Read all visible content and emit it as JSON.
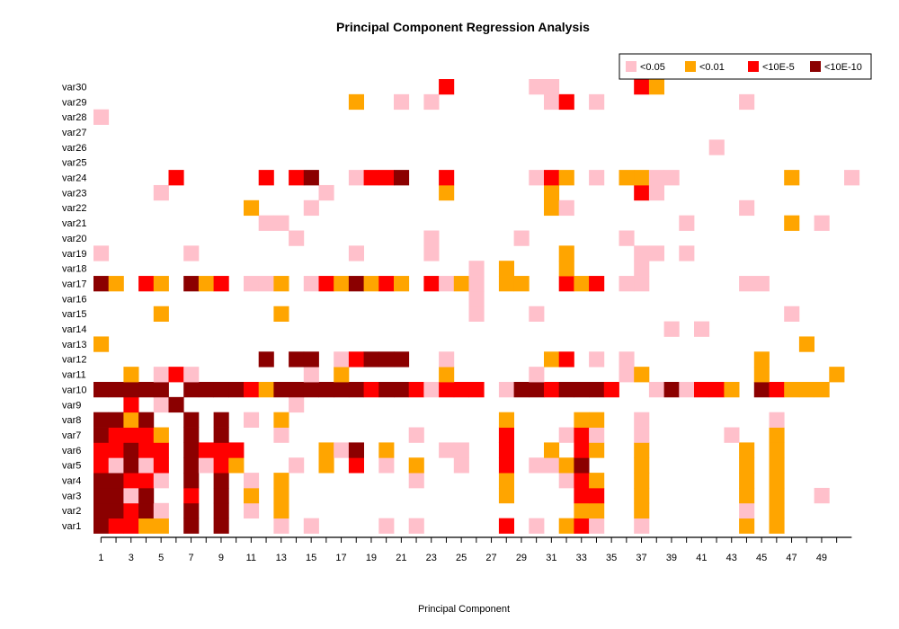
{
  "chart_data": {
    "type": "heatmap",
    "title": "Principal Component Regression Analysis",
    "xlabel": "Principal Component",
    "ylabel": "",
    "x_tick_labels": [
      "1",
      "3",
      "5",
      "7",
      "9",
      "11",
      "13",
      "15",
      "17",
      "19",
      "21",
      "23",
      "25",
      "27",
      "29",
      "31",
      "33",
      "35",
      "37",
      "39",
      "41",
      "43",
      "45",
      "47",
      "49"
    ],
    "x_range": [
      1,
      49
    ],
    "y_categories": [
      "var1",
      "var2",
      "var3",
      "var4",
      "var5",
      "var6",
      "var7",
      "var8",
      "var9",
      "var10",
      "var11",
      "var12",
      "var13",
      "var14",
      "var15",
      "var16",
      "var17",
      "var18",
      "var19",
      "var20",
      "var21",
      "var22",
      "var23",
      "var24",
      "var25",
      "var26",
      "var27",
      "var28",
      "var29",
      "var30"
    ],
    "legend": {
      "position": "top-right",
      "entries": [
        {
          "label": "<0.05",
          "level": 1,
          "color": "#ffc0cb"
        },
        {
          "label": "<0.01",
          "level": 2,
          "color": "#ffa500"
        },
        {
          "label": "<10E-5",
          "level": 3,
          "color": "#ff0000"
        },
        {
          "label": "<10E-10",
          "level": 4,
          "color": "#8b0000"
        }
      ]
    },
    "cells": {
      "var1": [
        [
          1,
          4
        ],
        [
          2,
          3
        ],
        [
          3,
          3
        ],
        [
          4,
          2
        ],
        [
          5,
          2
        ],
        [
          7,
          4
        ],
        [
          9,
          4
        ],
        [
          13,
          1
        ],
        [
          15,
          1
        ],
        [
          20,
          1
        ],
        [
          22,
          1
        ],
        [
          28,
          3
        ],
        [
          30,
          1
        ],
        [
          32,
          2
        ],
        [
          33,
          3
        ],
        [
          34,
          1
        ],
        [
          37,
          1
        ],
        [
          44,
          2
        ],
        [
          46,
          2
        ]
      ],
      "var2": [
        [
          1,
          4
        ],
        [
          2,
          4
        ],
        [
          3,
          3
        ],
        [
          4,
          4
        ],
        [
          5,
          1
        ],
        [
          7,
          4
        ],
        [
          9,
          4
        ],
        [
          11,
          1
        ],
        [
          13,
          2
        ],
        [
          33,
          2
        ],
        [
          34,
          2
        ],
        [
          37,
          2
        ],
        [
          44,
          1
        ],
        [
          46,
          2
        ]
      ],
      "var3": [
        [
          1,
          4
        ],
        [
          2,
          4
        ],
        [
          3,
          1
        ],
        [
          4,
          4
        ],
        [
          7,
          3
        ],
        [
          9,
          4
        ],
        [
          11,
          2
        ],
        [
          13,
          2
        ],
        [
          28,
          2
        ],
        [
          33,
          3
        ],
        [
          34,
          3
        ],
        [
          37,
          2
        ],
        [
          44,
          2
        ],
        [
          46,
          2
        ],
        [
          49,
          1
        ]
      ],
      "var4": [
        [
          1,
          4
        ],
        [
          2,
          4
        ],
        [
          3,
          3
        ],
        [
          4,
          3
        ],
        [
          5,
          1
        ],
        [
          7,
          4
        ],
        [
          9,
          4
        ],
        [
          11,
          1
        ],
        [
          13,
          2
        ],
        [
          22,
          1
        ],
        [
          28,
          2
        ],
        [
          32,
          1
        ],
        [
          33,
          3
        ],
        [
          34,
          2
        ],
        [
          37,
          2
        ],
        [
          44,
          2
        ],
        [
          46,
          2
        ]
      ],
      "var5": [
        [
          1,
          3
        ],
        [
          2,
          1
        ],
        [
          3,
          4
        ],
        [
          4,
          1
        ],
        [
          5,
          3
        ],
        [
          7,
          4
        ],
        [
          8,
          1
        ],
        [
          9,
          3
        ],
        [
          10,
          2
        ],
        [
          14,
          1
        ],
        [
          16,
          2
        ],
        [
          18,
          3
        ],
        [
          20,
          1
        ],
        [
          22,
          2
        ],
        [
          25,
          1
        ],
        [
          28,
          3
        ],
        [
          30,
          1
        ],
        [
          31,
          1
        ],
        [
          32,
          2
        ],
        [
          33,
          4
        ],
        [
          37,
          2
        ],
        [
          44,
          2
        ],
        [
          46,
          2
        ]
      ],
      "var6": [
        [
          1,
          3
        ],
        [
          2,
          3
        ],
        [
          3,
          4
        ],
        [
          4,
          3
        ],
        [
          5,
          3
        ],
        [
          7,
          4
        ],
        [
          8,
          3
        ],
        [
          9,
          3
        ],
        [
          10,
          3
        ],
        [
          16,
          2
        ],
        [
          17,
          1
        ],
        [
          18,
          4
        ],
        [
          20,
          2
        ],
        [
          24,
          1
        ],
        [
          25,
          1
        ],
        [
          28,
          3
        ],
        [
          31,
          2
        ],
        [
          33,
          3
        ],
        [
          34,
          2
        ],
        [
          37,
          2
        ],
        [
          44,
          2
        ],
        [
          46,
          2
        ]
      ],
      "var7": [
        [
          1,
          4
        ],
        [
          2,
          3
        ],
        [
          3,
          3
        ],
        [
          4,
          3
        ],
        [
          5,
          2
        ],
        [
          7,
          4
        ],
        [
          9,
          4
        ],
        [
          13,
          1
        ],
        [
          22,
          1
        ],
        [
          28,
          3
        ],
        [
          32,
          1
        ],
        [
          33,
          3
        ],
        [
          34,
          1
        ],
        [
          37,
          1
        ],
        [
          43,
          1
        ],
        [
          46,
          2
        ]
      ],
      "var8": [
        [
          1,
          4
        ],
        [
          2,
          4
        ],
        [
          3,
          2
        ],
        [
          4,
          4
        ],
        [
          7,
          4
        ],
        [
          9,
          4
        ],
        [
          11,
          1
        ],
        [
          13,
          2
        ],
        [
          28,
          2
        ],
        [
          33,
          2
        ],
        [
          34,
          2
        ],
        [
          37,
          1
        ],
        [
          46,
          1
        ]
      ],
      "var9": [
        [
          3,
          3
        ],
        [
          5,
          1
        ],
        [
          6,
          4
        ],
        [
          14,
          1
        ]
      ],
      "var10": [
        [
          1,
          4
        ],
        [
          2,
          4
        ],
        [
          3,
          4
        ],
        [
          4,
          4
        ],
        [
          5,
          4
        ],
        [
          7,
          4
        ],
        [
          8,
          4
        ],
        [
          9,
          4
        ],
        [
          10,
          4
        ],
        [
          11,
          3
        ],
        [
          12,
          2
        ],
        [
          13,
          4
        ],
        [
          14,
          4
        ],
        [
          15,
          4
        ],
        [
          16,
          4
        ],
        [
          17,
          4
        ],
        [
          18,
          4
        ],
        [
          19,
          3
        ],
        [
          20,
          4
        ],
        [
          21,
          4
        ],
        [
          22,
          3
        ],
        [
          23,
          1
        ],
        [
          24,
          3
        ],
        [
          25,
          3
        ],
        [
          26,
          3
        ],
        [
          28,
          1
        ],
        [
          29,
          4
        ],
        [
          30,
          4
        ],
        [
          31,
          3
        ],
        [
          32,
          4
        ],
        [
          33,
          4
        ],
        [
          34,
          4
        ],
        [
          35,
          3
        ],
        [
          38,
          1
        ],
        [
          39,
          4
        ],
        [
          40,
          1
        ],
        [
          41,
          3
        ],
        [
          42,
          3
        ],
        [
          43,
          2
        ],
        [
          45,
          4
        ],
        [
          46,
          3
        ],
        [
          47,
          2
        ],
        [
          48,
          2
        ],
        [
          49,
          2
        ]
      ],
      "var11": [
        [
          3,
          2
        ],
        [
          5,
          1
        ],
        [
          6,
          3
        ],
        [
          7,
          1
        ],
        [
          15,
          1
        ],
        [
          17,
          2
        ],
        [
          24,
          2
        ],
        [
          30,
          1
        ],
        [
          36,
          1
        ],
        [
          37,
          2
        ],
        [
          45,
          2
        ],
        [
          50,
          2
        ]
      ],
      "var12": [
        [
          12,
          4
        ],
        [
          14,
          4
        ],
        [
          15,
          4
        ],
        [
          17,
          1
        ],
        [
          18,
          3
        ],
        [
          19,
          4
        ],
        [
          20,
          4
        ],
        [
          21,
          4
        ],
        [
          24,
          1
        ],
        [
          31,
          2
        ],
        [
          32,
          3
        ],
        [
          34,
          1
        ],
        [
          36,
          1
        ],
        [
          45,
          2
        ]
      ],
      "var13": [
        [
          1,
          2
        ],
        [
          48,
          2
        ]
      ],
      "var14": [
        [
          39,
          1
        ],
        [
          41,
          1
        ]
      ],
      "var15": [
        [
          5,
          2
        ],
        [
          13,
          2
        ],
        [
          26,
          1
        ],
        [
          30,
          1
        ],
        [
          47,
          1
        ]
      ],
      "var16": [
        [
          26,
          1
        ]
      ],
      "var17": [
        [
          1,
          4
        ],
        [
          2,
          2
        ],
        [
          4,
          3
        ],
        [
          5,
          2
        ],
        [
          7,
          4
        ],
        [
          8,
          2
        ],
        [
          9,
          3
        ],
        [
          11,
          1
        ],
        [
          12,
          1
        ],
        [
          13,
          2
        ],
        [
          15,
          1
        ],
        [
          16,
          3
        ],
        [
          17,
          2
        ],
        [
          18,
          4
        ],
        [
          19,
          2
        ],
        [
          20,
          3
        ],
        [
          21,
          2
        ],
        [
          23,
          3
        ],
        [
          24,
          1
        ],
        [
          25,
          2
        ],
        [
          26,
          1
        ],
        [
          28,
          2
        ],
        [
          29,
          2
        ],
        [
          32,
          3
        ],
        [
          33,
          2
        ],
        [
          34,
          3
        ],
        [
          36,
          1
        ],
        [
          37,
          1
        ],
        [
          44,
          1
        ],
        [
          45,
          1
        ]
      ],
      "var18": [
        [
          26,
          1
        ],
        [
          28,
          2
        ],
        [
          32,
          2
        ],
        [
          37,
          1
        ]
      ],
      "var19": [
        [
          1,
          1
        ],
        [
          7,
          1
        ],
        [
          18,
          1
        ],
        [
          23,
          1
        ],
        [
          32,
          2
        ],
        [
          37,
          1
        ],
        [
          38,
          1
        ],
        [
          40,
          1
        ]
      ],
      "var20": [
        [
          14,
          1
        ],
        [
          23,
          1
        ],
        [
          29,
          1
        ],
        [
          36,
          1
        ]
      ],
      "var21": [
        [
          12,
          1
        ],
        [
          13,
          1
        ],
        [
          40,
          1
        ],
        [
          47,
          2
        ],
        [
          49,
          1
        ]
      ],
      "var22": [
        [
          11,
          2
        ],
        [
          15,
          1
        ],
        [
          31,
          2
        ],
        [
          32,
          1
        ],
        [
          44,
          1
        ]
      ],
      "var23": [
        [
          5,
          1
        ],
        [
          16,
          1
        ],
        [
          24,
          2
        ],
        [
          31,
          2
        ],
        [
          37,
          3
        ],
        [
          38,
          1
        ]
      ],
      "var24": [
        [
          6,
          3
        ],
        [
          12,
          3
        ],
        [
          14,
          3
        ],
        [
          15,
          4
        ],
        [
          18,
          1
        ],
        [
          19,
          3
        ],
        [
          20,
          3
        ],
        [
          21,
          4
        ],
        [
          24,
          3
        ],
        [
          30,
          1
        ],
        [
          31,
          3
        ],
        [
          32,
          2
        ],
        [
          34,
          1
        ],
        [
          36,
          2
        ],
        [
          37,
          2
        ],
        [
          38,
          1
        ],
        [
          39,
          1
        ],
        [
          47,
          2
        ],
        [
          51,
          1
        ]
      ],
      "var25": [],
      "var26": [
        [
          42,
          1
        ]
      ],
      "var27": [],
      "var28": [
        [
          1,
          1
        ]
      ],
      "var29": [
        [
          18,
          2
        ],
        [
          21,
          1
        ],
        [
          23,
          1
        ],
        [
          31,
          1
        ],
        [
          32,
          3
        ],
        [
          34,
          1
        ],
        [
          44,
          1
        ]
      ],
      "var30": [
        [
          24,
          3
        ],
        [
          30,
          1
        ],
        [
          31,
          1
        ],
        [
          37,
          3
        ],
        [
          38,
          2
        ]
      ]
    }
  }
}
